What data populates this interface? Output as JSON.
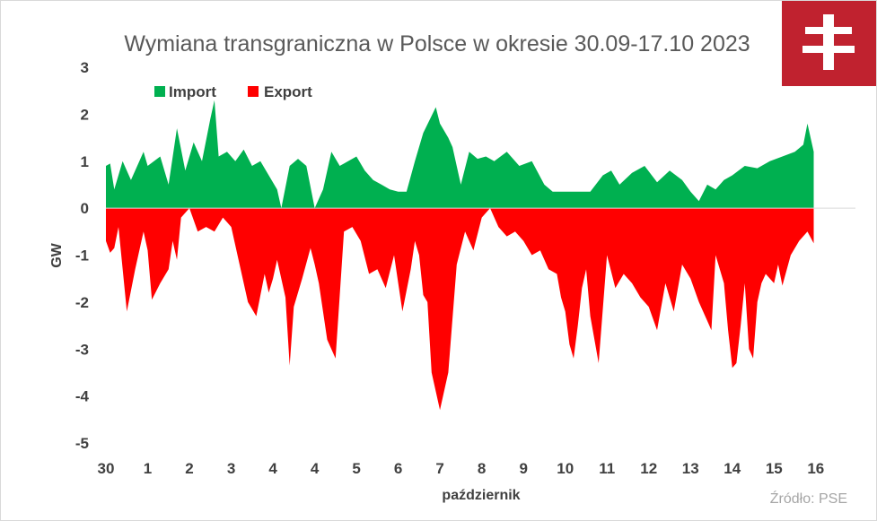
{
  "colors": {
    "import": "#00b050",
    "export": "#ff0000",
    "logo_bg": "#c0222f",
    "logo_fg": "#ffffff"
  },
  "logo": {
    "icon": "double-cross-logo-icon"
  },
  "source": "Źródło: PSE",
  "chart_data": {
    "type": "area",
    "title": "Wymiana transgraniczna w Polsce w okresie 30.09-17.10 2023",
    "xlabel": "październik",
    "ylabel": "GW",
    "ylim": [
      -5,
      3
    ],
    "yticks": [
      3,
      2,
      1,
      0,
      -1,
      -2,
      -3,
      -4,
      -5
    ],
    "xticks": [
      "30",
      "1",
      "2",
      "3",
      "4",
      "4",
      "5",
      "6",
      "7",
      "8",
      "9",
      "10",
      "11",
      "12",
      "13",
      "14",
      "15",
      "16"
    ],
    "legend": {
      "position": "top-left",
      "entries": [
        "Import",
        "Export"
      ]
    },
    "grid": false,
    "series": [
      {
        "name": "Import",
        "x": [
          0,
          0.1,
          0.2,
          0.4,
          0.6,
          0.9,
          1.0,
          1.3,
          1.5,
          1.7,
          1.9,
          2.1,
          2.3,
          2.5,
          2.6,
          2.7,
          2.9,
          3.1,
          3.3,
          3.5,
          3.7,
          3.9,
          4.1,
          4.2,
          4.4,
          4.6,
          4.8,
          5.0,
          5.2,
          5.4,
          5.6,
          5.8,
          6.0,
          6.2,
          6.4,
          6.6,
          6.8,
          7.0,
          7.2,
          7.4,
          7.6,
          7.9,
          8.0,
          8.2,
          8.3,
          8.5,
          8.7,
          8.9,
          9.1,
          9.3,
          9.6,
          9.9,
          10.2,
          10.5,
          10.7,
          10.8,
          11.0,
          11.3,
          11.6,
          11.9,
          12.1,
          12.3,
          12.6,
          12.9,
          13.2,
          13.5,
          13.8,
          14.0,
          14.2,
          14.4,
          14.6,
          14.8,
          15.0,
          15.3,
          15.6,
          15.9,
          16.2,
          16.5,
          16.7,
          16.8,
          16.95
        ],
        "values": [
          0.9,
          0.95,
          0.4,
          1.0,
          0.6,
          1.2,
          0.9,
          1.1,
          0.5,
          1.7,
          0.8,
          1.4,
          1.0,
          1.9,
          2.3,
          1.1,
          1.2,
          1.0,
          1.25,
          0.9,
          1.0,
          0.7,
          0.4,
          0.0,
          0.9,
          1.05,
          0.9,
          0.0,
          0.4,
          1.2,
          0.9,
          1.0,
          1.1,
          0.8,
          0.6,
          0.5,
          0.4,
          0.35,
          0.35,
          1.0,
          1.6,
          2.15,
          1.8,
          1.5,
          1.3,
          0.5,
          1.2,
          1.05,
          1.1,
          1.0,
          1.2,
          0.9,
          1.0,
          0.5,
          0.35,
          0.35,
          0.35,
          0.35,
          0.35,
          0.7,
          0.8,
          0.5,
          0.75,
          0.9,
          0.55,
          0.8,
          0.6,
          0.35,
          0.15,
          0.5,
          0.4,
          0.6,
          0.7,
          0.9,
          0.85,
          1.0,
          1.1,
          1.2,
          1.35,
          1.8,
          1.2
        ]
      },
      {
        "name": "Export",
        "x": [
          0,
          0.1,
          0.2,
          0.3,
          0.5,
          0.7,
          0.9,
          1.0,
          1.1,
          1.3,
          1.5,
          1.6,
          1.7,
          1.8,
          2.0,
          2.2,
          2.4,
          2.6,
          2.8,
          3.0,
          3.2,
          3.4,
          3.6,
          3.8,
          3.9,
          4.0,
          4.1,
          4.3,
          4.4,
          4.5,
          4.7,
          4.9,
          5.0,
          5.1,
          5.3,
          5.5,
          5.7,
          5.9,
          6.1,
          6.3,
          6.5,
          6.7,
          6.9,
          7.1,
          7.3,
          7.4,
          7.5,
          7.6,
          7.7,
          7.8,
          8.0,
          8.2,
          8.4,
          8.6,
          8.8,
          9.0,
          9.2,
          9.4,
          9.6,
          9.8,
          10.0,
          10.2,
          10.4,
          10.6,
          10.8,
          10.9,
          11.0,
          11.1,
          11.2,
          11.3,
          11.4,
          11.5,
          11.6,
          11.8,
          12.0,
          12.2,
          12.4,
          12.6,
          12.8,
          13.0,
          13.2,
          13.4,
          13.6,
          13.8,
          14.0,
          14.2,
          14.4,
          14.5,
          14.6,
          14.8,
          14.9,
          15.0,
          15.1,
          15.2,
          15.3,
          15.4,
          15.5,
          15.6,
          15.7,
          15.8,
          16.0,
          16.1,
          16.2,
          16.4,
          16.6,
          16.8,
          16.95
        ],
        "values": [
          -0.7,
          -0.95,
          -0.85,
          -0.4,
          -2.2,
          -1.3,
          -0.5,
          -0.9,
          -1.95,
          -1.6,
          -1.3,
          -0.7,
          -1.1,
          -0.2,
          0.0,
          -0.5,
          -0.4,
          -0.5,
          -0.2,
          -0.4,
          -1.2,
          -2.0,
          -2.3,
          -1.4,
          -1.8,
          -1.5,
          -1.1,
          -1.9,
          -3.35,
          -2.1,
          -1.5,
          -0.85,
          -1.2,
          -1.6,
          -2.8,
          -3.2,
          -0.5,
          -0.4,
          -0.7,
          -1.4,
          -1.3,
          -1.7,
          -1.0,
          -2.2,
          -1.3,
          -0.7,
          -1.0,
          -1.85,
          -2.0,
          -3.5,
          -4.3,
          -3.5,
          -1.2,
          -0.5,
          -0.9,
          -0.2,
          0.0,
          -0.4,
          -0.6,
          -0.5,
          -0.7,
          -1.0,
          -0.9,
          -1.3,
          -1.4,
          -1.9,
          -2.2,
          -2.9,
          -3.2,
          -2.5,
          -1.7,
          -1.3,
          -2.3,
          -3.3,
          -1.0,
          -1.7,
          -1.4,
          -1.6,
          -1.9,
          -2.1,
          -2.6,
          -1.6,
          -2.2,
          -1.2,
          -1.5,
          -2.0,
          -2.4,
          -2.6,
          -1.0,
          -1.6,
          -2.6,
          -3.4,
          -3.3,
          -2.5,
          -1.6,
          -3.0,
          -3.2,
          -2.0,
          -1.6,
          -1.4,
          -1.6,
          -1.2,
          -1.65,
          -1.0,
          -0.7,
          -0.5,
          -0.75
        ]
      }
    ]
  }
}
